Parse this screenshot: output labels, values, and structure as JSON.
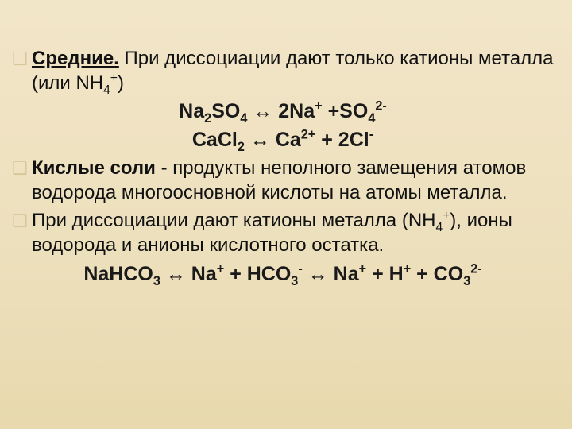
{
  "slide": {
    "background_gradient": [
      "#f2e6c9",
      "#f0e3c3",
      "#ede0bd",
      "#e8d9ae"
    ],
    "hr_color": "#d0a95c",
    "bullet_glyph": "❑",
    "bullet_color": "#d7c79a",
    "text_color": "#111111",
    "body_fontsize": 24,
    "equation_fontsize": 25
  },
  "para1": {
    "lead_bold": "Средние.",
    "rest1": " При диссоциации дают только катионы металла (или NH",
    "sub4": "4",
    "sup_plus": "+",
    "rest2": ")"
  },
  "eq1": {
    "p1": "Na",
    "s1": "2",
    "p2": "SO",
    "s2": "4",
    "arrow": " ↔ ",
    "p3": "2Na",
    "sup1": "+",
    "p4": " +SO",
    "s3": "4",
    "sup2": "2-"
  },
  "eq2": {
    "p1": "CaCl",
    "s1": "2",
    "arrow": "  ↔  ",
    "p2": "Ca",
    "sup1": "2+",
    "p3": " + 2Cl",
    "sup2": "-"
  },
  "para2": {
    "lead_bold": "Кислые соли",
    "rest": " - продукты неполного замещения атомов водорода многоосновной кислоты на атомы металла."
  },
  "para3": {
    "t1": "При диссоциации дают катионы металла (NH",
    "sub4": "4",
    "sup_plus": "+",
    "t2": "), ионы водорода и анионы кислотного остатка."
  },
  "eq3": {
    "p1": "NaHCO",
    "s1": "3",
    "arrow1": "  ↔ ",
    "p2": "Na",
    "sup1": "+",
    "p3": " + HCO",
    "s2": "3",
    "sup2": "-",
    "arrow2": "  ↔ ",
    "p4": "Na",
    "sup3": "+",
    "p5": " + H",
    "sup4": "+",
    "p6": " + CO",
    "s3": "3",
    "sup5": "2-"
  }
}
